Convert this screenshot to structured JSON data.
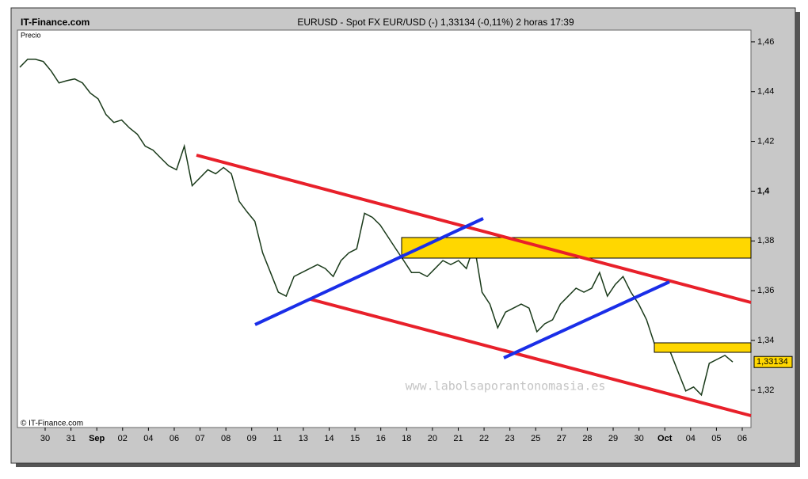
{
  "brand": "IT-Finance.com",
  "chart_data": {
    "type": "line",
    "title": "EURUSD - Spot FX EUR/USD (-)    1,33134 (-0,11%)    2 horas   17:39",
    "y_label": "Precio",
    "copyright": "© IT-Finance.com",
    "watermark": "www.labolsaporantonomasia.es",
    "xticks": [
      "30",
      "31",
      "Sep",
      "02",
      "04",
      "06",
      "07",
      "08",
      "09",
      "11",
      "13",
      "14",
      "15",
      "16",
      "18",
      "20",
      "21",
      "22",
      "23",
      "25",
      "27",
      "28",
      "29",
      "30",
      "Oct",
      "04",
      "05",
      "06"
    ],
    "ylim": [
      1.305,
      1.4641
    ],
    "yticks": [
      {
        "value": 1.46,
        "label": "1,46"
      },
      {
        "value": 1.44,
        "label": "1,44"
      },
      {
        "value": 1.42,
        "label": "1,42"
      },
      {
        "value": 1.4,
        "label": "1,4"
      },
      {
        "value": 1.38,
        "label": "1,38"
      },
      {
        "value": 1.36,
        "label": "1,36"
      },
      {
        "value": 1.34,
        "label": "1,34"
      },
      {
        "value": 1.32,
        "label": "1,32"
      }
    ],
    "series": [
      {
        "name": "EURUSD",
        "color": "#1a3a1a",
        "values": [
          1.4498,
          1.453,
          1.453,
          1.4521,
          1.4483,
          1.4435,
          1.4444,
          1.4451,
          1.4435,
          1.4394,
          1.4371,
          1.4308,
          1.4276,
          1.4286,
          1.4254,
          1.4229,
          1.4181,
          1.4165,
          1.4133,
          1.4102,
          1.4086,
          1.4181,
          1.4022,
          1.4054,
          1.4086,
          1.407,
          1.4095,
          1.407,
          1.3959,
          1.3917,
          1.3879,
          1.3752,
          1.3673,
          1.3594,
          1.3578,
          1.3657,
          1.3673,
          1.3689,
          1.3705,
          1.3689,
          1.3657,
          1.3721,
          1.3752,
          1.3768,
          1.3911,
          1.3895,
          1.3864,
          1.3816,
          1.3768,
          1.3721,
          1.3673,
          1.3673,
          1.3657,
          1.3689,
          1.3721,
          1.3705,
          1.3721,
          1.3689,
          1.3784,
          1.3594,
          1.3546,
          1.3451,
          1.3514,
          1.353,
          1.3546,
          1.353,
          1.3435,
          1.3467,
          1.3483,
          1.3546,
          1.3578,
          1.361,
          1.3594,
          1.361,
          1.3673,
          1.3578,
          1.3625,
          1.3657,
          1.3594,
          1.3546,
          1.3483,
          1.3387,
          1.3371,
          1.3356,
          1.3276,
          1.3197,
          1.3213,
          1.3181,
          1.3308,
          1.3324,
          1.334,
          1.33134
        ],
        "last_label": "1,33134"
      }
    ]
  }
}
